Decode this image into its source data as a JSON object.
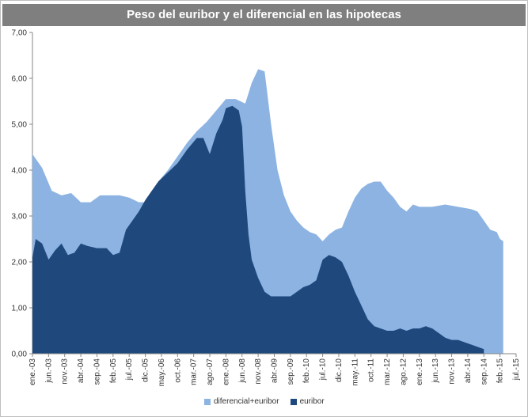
{
  "chart_data": {
    "type": "area",
    "title": "Peso del euribor y el diferencial en las hipotecas",
    "ylim": [
      0,
      7
    ],
    "yticks": [
      "0,00",
      "1,00",
      "2,00",
      "3,00",
      "4,00",
      "5,00",
      "6,00",
      "7,00"
    ],
    "x_tick_labels": [
      "ene.-03",
      "jun.-03",
      "nov.-03",
      "abr.-04",
      "sep.-04",
      "feb.-05",
      "jul.-05",
      "dic.-05",
      "may.-06",
      "oct.-06",
      "mar.-07",
      "ago.-07",
      "ene.-08",
      "jun.-08",
      "nov.-08",
      "abr.-09",
      "sep.-09",
      "feb.-10",
      "jul.-10",
      "dic.-10",
      "may.-11",
      "oct.-11",
      "mar.-12",
      "ago.-12",
      "ene.-13",
      "jun.-13",
      "nov.-13",
      "abr.-14",
      "sep.-14",
      "feb.-15",
      "jul.-15"
    ],
    "grid": false,
    "legend_position": "bottom",
    "series": [
      {
        "name": "diferencial+euribor",
        "color": "#8db3e2",
        "keypoints": [
          [
            0,
            4.35
          ],
          [
            3,
            4.05
          ],
          [
            6,
            3.55
          ],
          [
            9,
            3.45
          ],
          [
            12,
            3.5
          ],
          [
            15,
            3.3
          ],
          [
            18,
            3.3
          ],
          [
            21,
            3.45
          ],
          [
            24,
            3.45
          ],
          [
            27,
            3.45
          ],
          [
            30,
            3.4
          ],
          [
            33,
            3.3
          ],
          [
            36,
            3.3
          ],
          [
            39,
            3.75
          ],
          [
            42,
            4.0
          ],
          [
            45,
            4.3
          ],
          [
            48,
            4.6
          ],
          [
            51,
            4.85
          ],
          [
            54,
            5.05
          ],
          [
            57,
            5.3
          ],
          [
            60,
            5.55
          ],
          [
            63,
            5.55
          ],
          [
            66,
            5.45
          ],
          [
            68,
            5.9
          ],
          [
            70,
            6.2
          ],
          [
            72,
            6.15
          ],
          [
            74,
            5.0
          ],
          [
            76,
            4.0
          ],
          [
            78,
            3.45
          ],
          [
            80,
            3.1
          ],
          [
            82,
            2.9
          ],
          [
            84,
            2.75
          ],
          [
            86,
            2.65
          ],
          [
            88,
            2.6
          ],
          [
            90,
            2.45
          ],
          [
            92,
            2.6
          ],
          [
            94,
            2.7
          ],
          [
            96,
            2.75
          ],
          [
            98,
            3.1
          ],
          [
            100,
            3.4
          ],
          [
            102,
            3.6
          ],
          [
            104,
            3.7
          ],
          [
            106,
            3.75
          ],
          [
            108,
            3.75
          ],
          [
            110,
            3.55
          ],
          [
            112,
            3.4
          ],
          [
            114,
            3.2
          ],
          [
            116,
            3.1
          ],
          [
            118,
            3.25
          ],
          [
            120,
            3.2
          ],
          [
            124,
            3.2
          ],
          [
            128,
            3.25
          ],
          [
            132,
            3.2
          ],
          [
            136,
            3.15
          ],
          [
            138,
            3.1
          ],
          [
            140,
            2.9
          ],
          [
            142,
            2.7
          ],
          [
            144,
            2.65
          ],
          [
            145,
            2.5
          ],
          [
            146,
            2.45
          ]
        ]
      },
      {
        "name": "euribor",
        "color": "#1f497d",
        "keypoints": [
          [
            0,
            2.1
          ],
          [
            1,
            2.5
          ],
          [
            2,
            2.45
          ],
          [
            3,
            2.4
          ],
          [
            5,
            2.05
          ],
          [
            7,
            2.25
          ],
          [
            9,
            2.4
          ],
          [
            11,
            2.15
          ],
          [
            13,
            2.2
          ],
          [
            15,
            2.4
          ],
          [
            17,
            2.35
          ],
          [
            20,
            2.3
          ],
          [
            23,
            2.3
          ],
          [
            25,
            2.15
          ],
          [
            27,
            2.2
          ],
          [
            29,
            2.7
          ],
          [
            31,
            2.9
          ],
          [
            33,
            3.1
          ],
          [
            35,
            3.35
          ],
          [
            37,
            3.55
          ],
          [
            39,
            3.75
          ],
          [
            42,
            3.95
          ],
          [
            45,
            4.15
          ],
          [
            48,
            4.45
          ],
          [
            51,
            4.7
          ],
          [
            53,
            4.7
          ],
          [
            55,
            4.35
          ],
          [
            57,
            4.8
          ],
          [
            59,
            5.1
          ],
          [
            60,
            5.35
          ],
          [
            62,
            5.4
          ],
          [
            64,
            5.3
          ],
          [
            65,
            4.95
          ],
          [
            66,
            3.55
          ],
          [
            67,
            2.6
          ],
          [
            68,
            2.05
          ],
          [
            70,
            1.65
          ],
          [
            72,
            1.35
          ],
          [
            74,
            1.25
          ],
          [
            76,
            1.25
          ],
          [
            78,
            1.25
          ],
          [
            80,
            1.25
          ],
          [
            82,
            1.35
          ],
          [
            84,
            1.45
          ],
          [
            86,
            1.5
          ],
          [
            88,
            1.6
          ],
          [
            90,
            2.05
          ],
          [
            92,
            2.15
          ],
          [
            94,
            2.1
          ],
          [
            96,
            2.0
          ],
          [
            98,
            1.7
          ],
          [
            100,
            1.35
          ],
          [
            102,
            1.05
          ],
          [
            104,
            0.75
          ],
          [
            106,
            0.6
          ],
          [
            108,
            0.55
          ],
          [
            110,
            0.5
          ],
          [
            112,
            0.5
          ],
          [
            114,
            0.55
          ],
          [
            116,
            0.5
          ],
          [
            118,
            0.55
          ],
          [
            120,
            0.55
          ],
          [
            122,
            0.6
          ],
          [
            124,
            0.55
          ],
          [
            126,
            0.45
          ],
          [
            128,
            0.35
          ],
          [
            130,
            0.3
          ],
          [
            132,
            0.3
          ],
          [
            134,
            0.25
          ],
          [
            136,
            0.2
          ],
          [
            138,
            0.15
          ],
          [
            140,
            0.1
          ]
        ]
      }
    ]
  },
  "legend": {
    "items": [
      {
        "label": "diferencial+euribor",
        "color": "#8db3e2"
      },
      {
        "label": "euribor",
        "color": "#1f497d"
      }
    ]
  }
}
